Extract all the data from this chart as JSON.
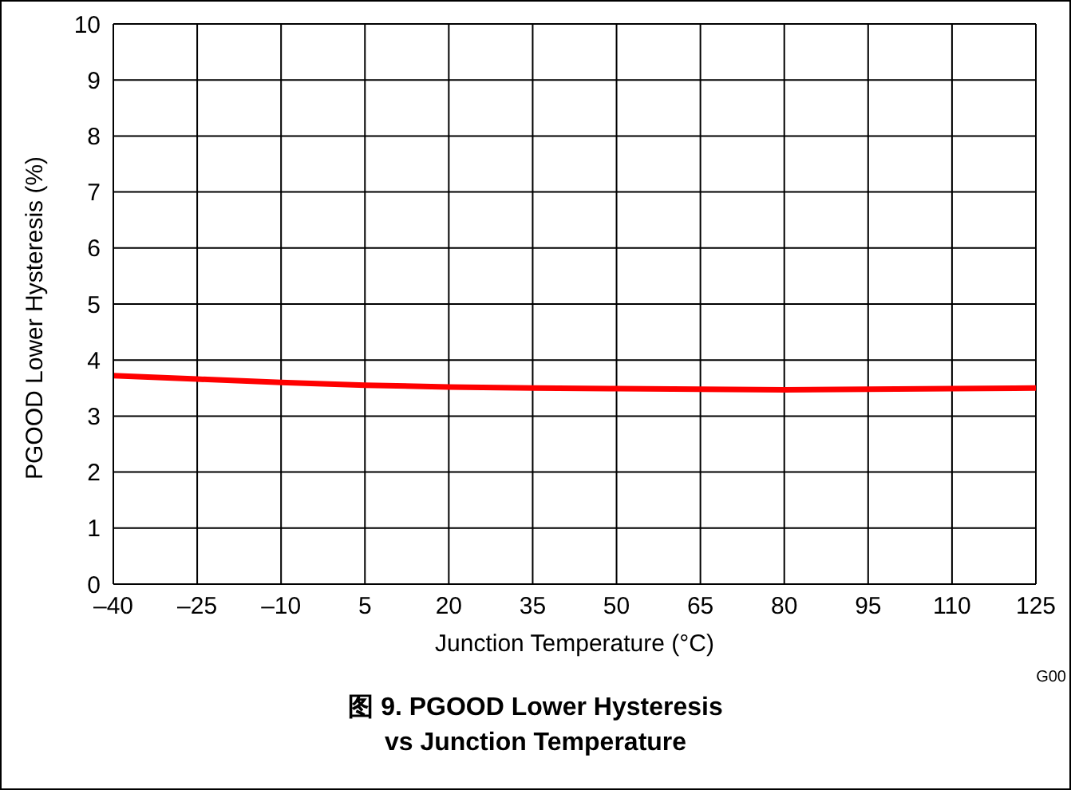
{
  "chart_data": {
    "type": "line",
    "title": "图 9.  PGOOD Lower Hysteresis\nvs Junction Temperature",
    "xlabel": "Junction Temperature (°C)",
    "ylabel": "PGOOD Lower Hysteresis (%)",
    "x": [
      -40,
      -25,
      -10,
      5,
      20,
      35,
      50,
      65,
      80,
      95,
      110,
      125
    ],
    "series": [
      {
        "color": "#ff0000",
        "values": [
          3.72,
          3.66,
          3.6,
          3.55,
          3.52,
          3.5,
          3.49,
          3.48,
          3.47,
          3.48,
          3.49,
          3.5
        ]
      }
    ],
    "xlim": [
      -40,
      125
    ],
    "xticks": [
      {
        "value": -40,
        "label": "–40"
      },
      {
        "value": -25,
        "label": "–25"
      },
      {
        "value": -10,
        "label": "–10"
      },
      5,
      20,
      35,
      50,
      65,
      80,
      95,
      110,
      125
    ],
    "ylim": [
      0,
      10
    ],
    "yticks": [
      0,
      1,
      2,
      3,
      4,
      5,
      6,
      7,
      8,
      9,
      10
    ],
    "grid": true,
    "annotations": [
      "G00"
    ]
  }
}
